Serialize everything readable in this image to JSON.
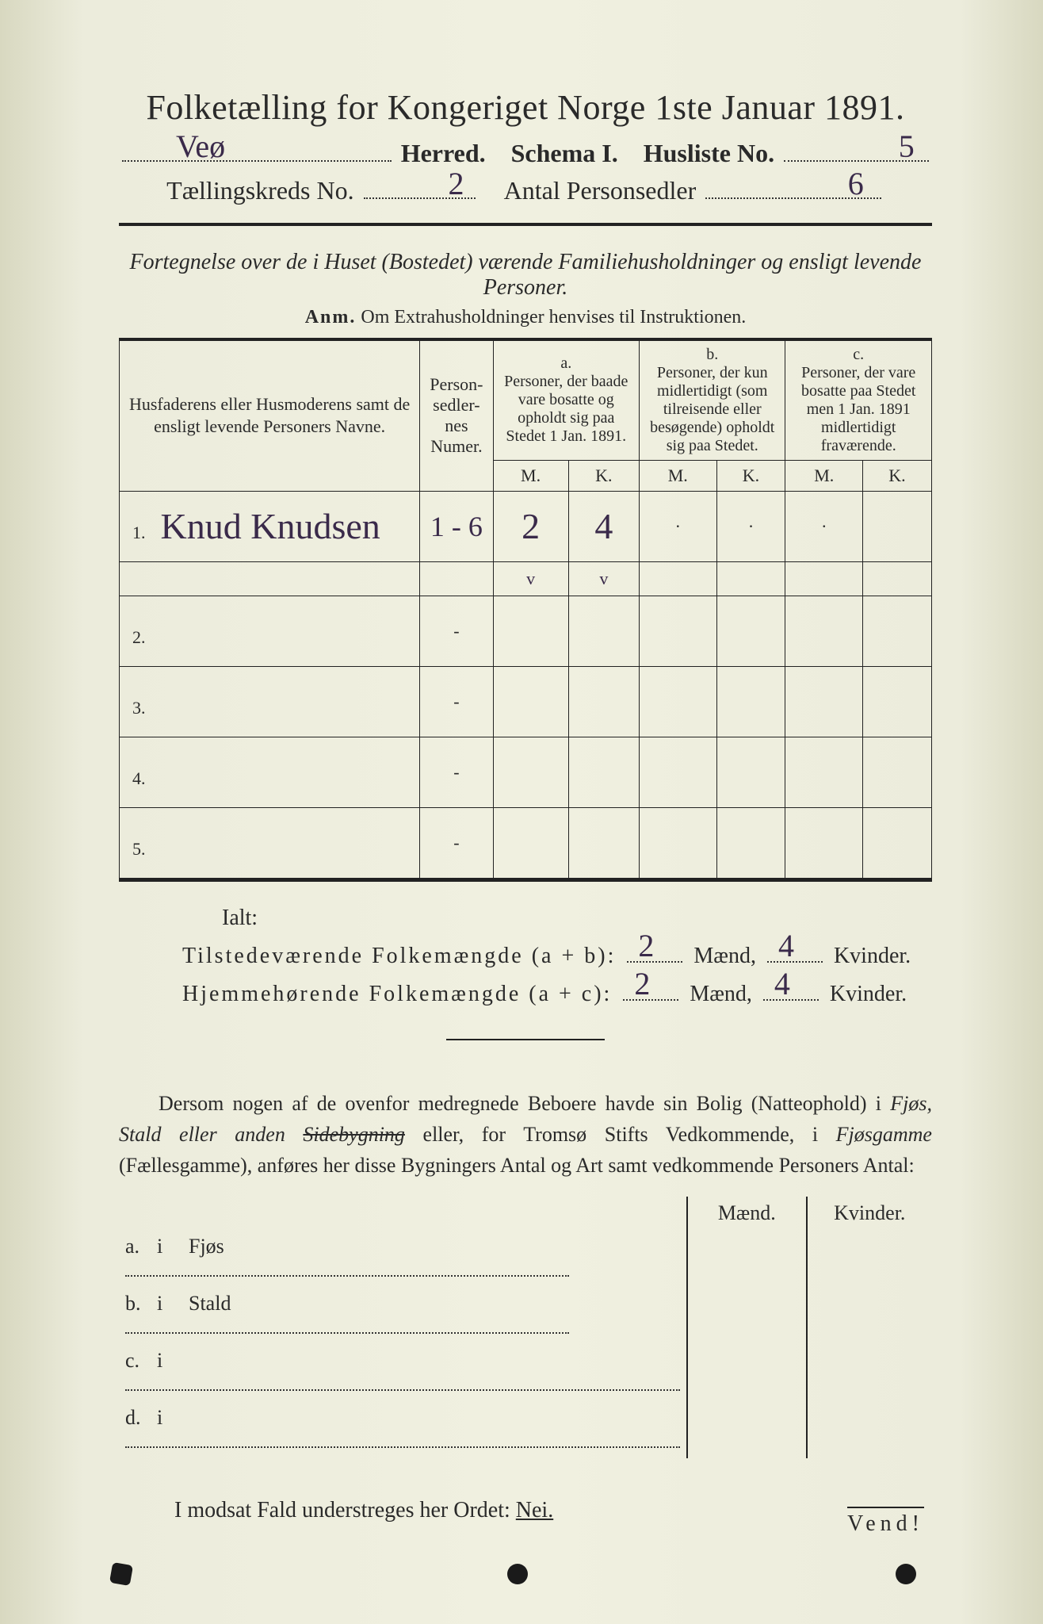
{
  "header": {
    "main_title": "Folketælling for Kongeriget Norge 1ste Januar 1891.",
    "herred_label": "Herred.",
    "schema_label": "Schema I.",
    "husliste_label": "Husliste No.",
    "herred_value": "Veø",
    "husliste_value": "5",
    "kreds_label": "Tællingskreds No.",
    "kreds_value": "2",
    "antal_label": "Antal Personsedler",
    "antal_value": "6"
  },
  "subheader": {
    "italic_line": "Fortegnelse over de i Huset (Bostedet) værende Familiehusholdninger og ensligt levende Personer.",
    "anm_label": "Anm.",
    "anm_text": "Om Extrahusholdninger henvises til Instruktionen."
  },
  "table": {
    "col_names_header": "Husfaderens eller Husmoderens samt de ensligt levende Personers Navne.",
    "col_person_header": "Person-sedler-nes Numer.",
    "col_a_label": "a.",
    "col_a_text": "Personer, der baade vare bosatte og opholdt sig paa Stedet 1 Jan. 1891.",
    "col_b_label": "b.",
    "col_b_text": "Personer, der kun midlertidigt (som tilreisende eller besøgende) opholdt sig paa Stedet.",
    "col_c_label": "c.",
    "col_c_text": "Personer, der vare bosatte paa Stedet men 1 Jan. 1891 midlertidigt fraværende.",
    "m": "M.",
    "k": "K.",
    "rows": [
      {
        "num": "1.",
        "name": "Knud Knudsen",
        "person": "1 - 6",
        "a_m": "2",
        "a_k": "4",
        "b_m": "·",
        "b_k": "·",
        "c_m": "·",
        "c_k": ""
      },
      {
        "num": "2.",
        "name": "",
        "person": "-",
        "a_m": "",
        "a_k": "",
        "b_m": "",
        "b_k": "",
        "c_m": "",
        "c_k": ""
      },
      {
        "num": "3.",
        "name": "",
        "person": "-",
        "a_m": "",
        "a_k": "",
        "b_m": "",
        "b_k": "",
        "c_m": "",
        "c_k": ""
      },
      {
        "num": "4.",
        "name": "",
        "person": "-",
        "a_m": "",
        "a_k": "",
        "b_m": "",
        "b_k": "",
        "c_m": "",
        "c_k": ""
      },
      {
        "num": "5.",
        "name": "",
        "person": "-",
        "a_m": "",
        "a_k": "",
        "b_m": "",
        "b_k": "",
        "c_m": "",
        "c_k": ""
      }
    ],
    "checks": {
      "a_m": "v",
      "a_k": "v"
    }
  },
  "totals": {
    "ialt": "Ialt:",
    "line1_label": "Tilstedeværende Folkemængde (a + b):",
    "line2_label": "Hjemmehørende Folkemængde (a + c):",
    "maend": "Mænd,",
    "kvinder": "Kvinder.",
    "line1_m": "2",
    "line1_k": "4",
    "line2_m": "2",
    "line2_k": "4"
  },
  "paragraph": {
    "text_1": "Dersom nogen af de ovenfor medregnede Beboere havde sin Bolig (Natteophold) i ",
    "italic_1": "Fjøs, Stald eller anden ",
    "struck": "Sidebygning",
    "text_2": " eller, for Tromsø Stifts Vedkommende, i ",
    "italic_2": "Fjøsgamme",
    "text_3": " (Fællesgamme), anføres her disse Bygningers Antal og Art samt vedkommende Personers Antal:"
  },
  "last_table": {
    "maend": "Mænd.",
    "kvinder": "Kvinder.",
    "rows": [
      {
        "letter": "a.",
        "i": "i",
        "label": "Fjøs"
      },
      {
        "letter": "b.",
        "i": "i",
        "label": "Stald"
      },
      {
        "letter": "c.",
        "i": "i",
        "label": ""
      },
      {
        "letter": "d.",
        "i": "i",
        "label": ""
      }
    ]
  },
  "nei_line": "I modsat Fald understreges her Ordet:",
  "nei_word": "Nei.",
  "vend": "Vend!"
}
